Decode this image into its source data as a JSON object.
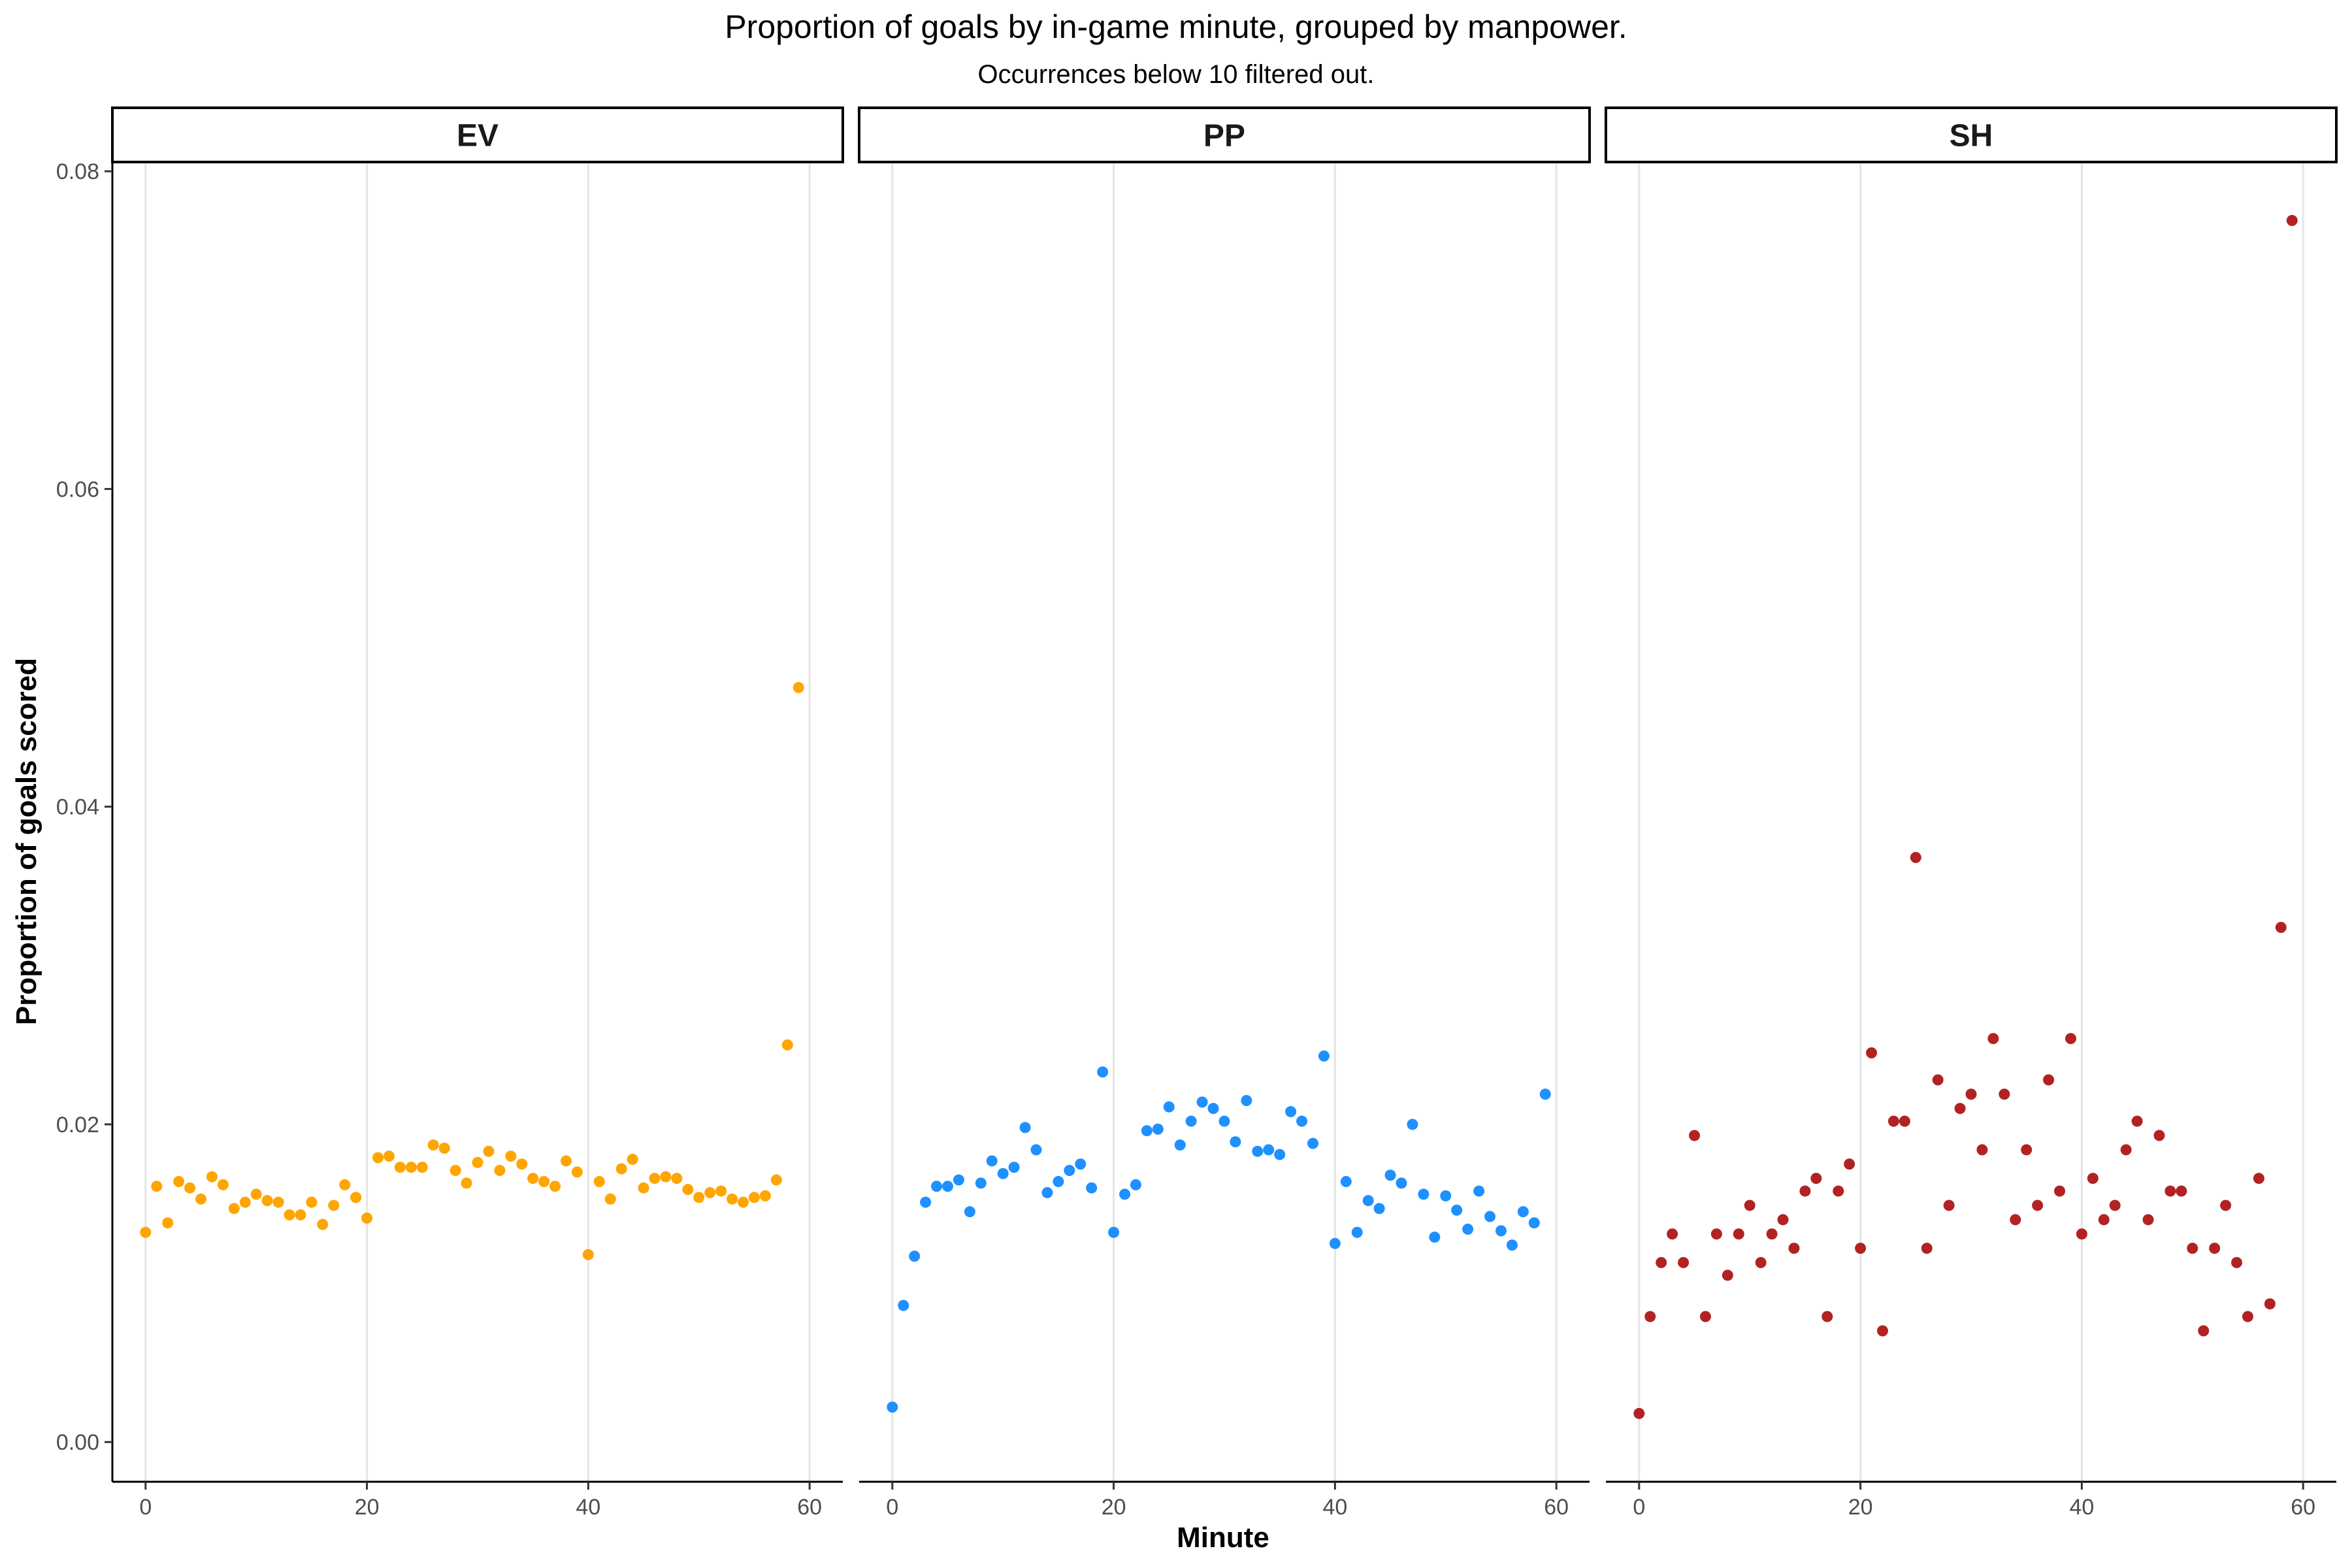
{
  "chart_data": {
    "type": "scatter",
    "title": "Proportion of goals by in-game minute, grouped by manpower.",
    "subtitle": "Occurrences below 10 filtered out.",
    "xlabel": "Minute",
    "ylabel": "Proportion of goals scored",
    "xlim": [
      -3,
      63
    ],
    "ylim": [
      -0.0025,
      0.0805
    ],
    "x_ticks": [
      0,
      20,
      40,
      60
    ],
    "x_tick_labels": [
      "0",
      "20",
      "40",
      "60"
    ],
    "y_ticks": [
      0,
      0.02,
      0.04,
      0.06,
      0.08
    ],
    "y_tick_labels": [
      "0.00",
      "0.02",
      "0.04",
      "0.06",
      "0.08"
    ],
    "grid": "vertical major lines only",
    "facets": [
      {
        "label": "EV",
        "color": "#FFA500",
        "x": [
          0,
          1,
          2,
          3,
          4,
          5,
          6,
          7,
          8,
          9,
          10,
          11,
          12,
          13,
          14,
          15,
          16,
          17,
          18,
          19,
          20,
          21,
          22,
          23,
          24,
          25,
          26,
          27,
          28,
          29,
          30,
          31,
          32,
          33,
          34,
          35,
          36,
          37,
          38,
          39,
          40,
          41,
          42,
          43,
          44,
          45,
          46,
          47,
          48,
          49,
          50,
          51,
          52,
          53,
          54,
          55,
          56,
          57,
          58,
          59
        ],
        "y": [
          0.0132,
          0.0161,
          0.0138,
          0.0164,
          0.016,
          0.0153,
          0.0167,
          0.0162,
          0.0147,
          0.0151,
          0.0156,
          0.0152,
          0.0151,
          0.0143,
          0.0143,
          0.0151,
          0.0137,
          0.0149,
          0.0162,
          0.0154,
          0.0141,
          0.0179,
          0.018,
          0.0173,
          0.0173,
          0.0173,
          0.0187,
          0.0185,
          0.0171,
          0.0163,
          0.0176,
          0.0183,
          0.0171,
          0.018,
          0.0175,
          0.0166,
          0.0164,
          0.0161,
          0.0177,
          0.017,
          0.0118,
          0.0164,
          0.0153,
          0.0172,
          0.0178,
          0.016,
          0.0166,
          0.0167,
          0.0166,
          0.0159,
          0.0154,
          0.0157,
          0.0158,
          0.0153,
          0.0151,
          0.0154,
          0.0155,
          0.0165,
          0.025,
          0.0475
        ]
      },
      {
        "label": "PP",
        "color": "#1E90FF",
        "x": [
          0,
          1,
          2,
          3,
          4,
          5,
          6,
          7,
          8,
          9,
          10,
          11,
          12,
          13,
          14,
          15,
          16,
          17,
          18,
          19,
          20,
          21,
          22,
          23,
          24,
          25,
          26,
          27,
          28,
          29,
          30,
          31,
          32,
          33,
          34,
          35,
          36,
          37,
          38,
          39,
          40,
          41,
          42,
          43,
          44,
          45,
          46,
          47,
          48,
          49,
          50,
          51,
          52,
          53,
          54,
          55,
          56,
          57,
          58,
          59
        ],
        "y": [
          0.0022,
          0.0086,
          0.0117,
          0.0151,
          0.0161,
          0.0161,
          0.0165,
          0.0145,
          0.0163,
          0.0177,
          0.0169,
          0.0173,
          0.0198,
          0.0184,
          0.0157,
          0.0164,
          0.0171,
          0.0175,
          0.016,
          0.0233,
          0.0132,
          0.0156,
          0.0162,
          0.0196,
          0.0197,
          0.0211,
          0.0187,
          0.0202,
          0.0214,
          0.021,
          0.0202,
          0.0189,
          0.0215,
          0.0183,
          0.0184,
          0.0181,
          0.0208,
          0.0202,
          0.0188,
          0.0243,
          0.0125,
          0.0164,
          0.0132,
          0.0152,
          0.0147,
          0.0168,
          0.0163,
          0.02,
          0.0156,
          0.0129,
          0.0155,
          0.0146,
          0.0134,
          0.0158,
          0.0142,
          0.0133,
          0.0124,
          0.0145,
          0.0138,
          0.0219
        ]
      },
      {
        "label": "SH",
        "color": "#B22222",
        "x": [
          0,
          1,
          2,
          3,
          4,
          5,
          6,
          7,
          8,
          9,
          10,
          11,
          12,
          13,
          14,
          15,
          16,
          17,
          18,
          19,
          20,
          21,
          22,
          23,
          24,
          25,
          26,
          27,
          28,
          29,
          30,
          31,
          32,
          33,
          34,
          35,
          36,
          37,
          38,
          39,
          40,
          41,
          42,
          43,
          44,
          45,
          46,
          47,
          48,
          49,
          50,
          51,
          52,
          53,
          54,
          55,
          56,
          57,
          58,
          59
        ],
        "y": [
          0.0018,
          0.0079,
          0.0113,
          0.0131,
          0.0113,
          0.0193,
          0.0079,
          0.0131,
          0.0105,
          0.0131,
          0.0149,
          0.0113,
          0.0131,
          0.014,
          0.0122,
          0.0158,
          0.0166,
          0.0079,
          0.0158,
          0.0175,
          0.0122,
          0.0245,
          0.007,
          0.0202,
          0.0202,
          0.0368,
          0.0122,
          0.0228,
          0.0149,
          0.021,
          0.0219,
          0.0184,
          0.0254,
          0.0219,
          0.014,
          0.0184,
          0.0149,
          0.0228,
          0.0158,
          0.0254,
          0.0131,
          0.0166,
          0.014,
          0.0149,
          0.0184,
          0.0202,
          0.014,
          0.0193,
          0.0158,
          0.0158,
          0.0122,
          0.007,
          0.0122,
          0.0149,
          0.0113,
          0.0079,
          0.0166,
          0.0087,
          0.0324,
          0.0769
        ]
      }
    ]
  }
}
